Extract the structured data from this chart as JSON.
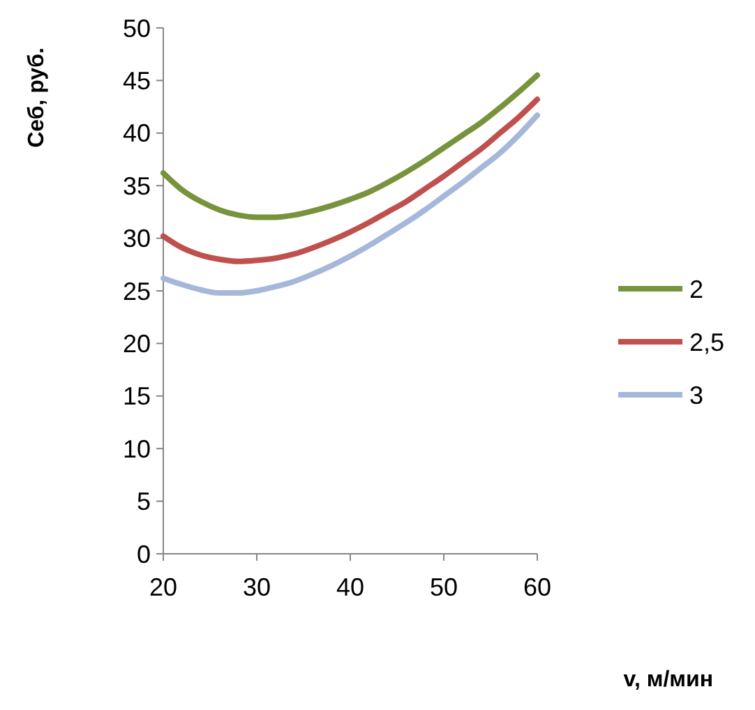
{
  "chart_data": {
    "type": "line",
    "xlabel": "v, м/мин",
    "ylabel": "Себ, руб.",
    "x": [
      20,
      22,
      24,
      26,
      28,
      30,
      32,
      34,
      36,
      38,
      40,
      42,
      44,
      46,
      48,
      50,
      52,
      54,
      56,
      58,
      60
    ],
    "xlim": [
      20,
      60
    ],
    "xticks": [
      20,
      30,
      40,
      50,
      60
    ],
    "ylim": [
      0,
      50
    ],
    "yticks": [
      0,
      5,
      10,
      15,
      20,
      25,
      30,
      35,
      40,
      45,
      50
    ],
    "grid": false,
    "legend": "right",
    "marker": "none",
    "line_style": "solid",
    "series": [
      {
        "name": "2",
        "color": "#77933c",
        "values": [
          36.2,
          34.6,
          33.5,
          32.7,
          32.2,
          32.0,
          32.0,
          32.2,
          32.6,
          33.1,
          33.7,
          34.4,
          35.3,
          36.3,
          37.4,
          38.6,
          39.8,
          41.0,
          42.4,
          43.9,
          45.5
        ]
      },
      {
        "name": "2,5",
        "color": "#c0504d",
        "values": [
          30.2,
          29.1,
          28.4,
          28.0,
          27.8,
          27.9,
          28.1,
          28.5,
          29.1,
          29.8,
          30.6,
          31.5,
          32.5,
          33.5,
          34.7,
          35.9,
          37.2,
          38.5,
          40.0,
          41.5,
          43.2
        ]
      },
      {
        "name": "3",
        "color": "#a5b8da",
        "values": [
          26.2,
          25.6,
          25.1,
          24.8,
          24.8,
          25.0,
          25.4,
          25.9,
          26.6,
          27.4,
          28.3,
          29.3,
          30.4,
          31.5,
          32.7,
          34.0,
          35.3,
          36.7,
          38.1,
          39.8,
          41.7
        ]
      }
    ]
  }
}
